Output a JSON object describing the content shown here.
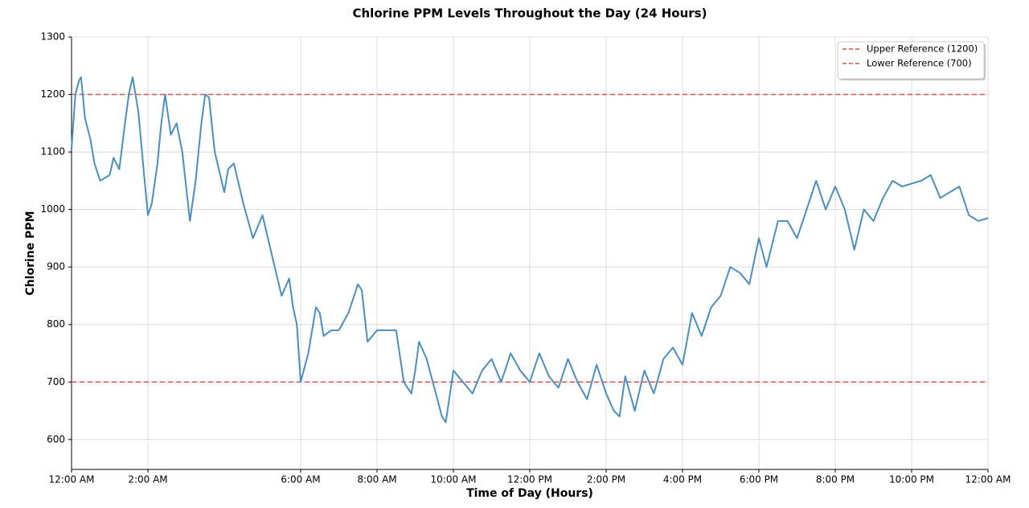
{
  "chart_data": {
    "type": "line",
    "title": "Chlorine PPM Levels Throughout the Day (24 Hours)",
    "x_label": "Time of Day (Hours)",
    "y_label": "Chlorine PPM",
    "x": [
      0,
      0.1,
      0.2,
      0.25,
      0.35,
      0.5,
      0.6,
      0.75,
      1,
      1.1,
      1.25,
      1.4,
      1.5,
      1.6,
      1.75,
      1.9,
      2,
      2.1,
      2.25,
      2.35,
      2.45,
      2.6,
      2.75,
      2.9,
      3,
      3.1,
      3.25,
      3.4,
      3.5,
      3.6,
      3.75,
      4,
      4.1,
      4.25,
      4.5,
      4.75,
      5,
      5.25,
      5.5,
      5.7,
      5.8,
      5.9,
      6,
      6.2,
      6.4,
      6.5,
      6.6,
      6.8,
      7,
      7.25,
      7.5,
      7.6,
      7.75,
      8,
      8.25,
      8.5,
      8.7,
      8.9,
      9,
      9.1,
      9.3,
      9.5,
      9.7,
      9.8,
      10,
      10.25,
      10.5,
      10.75,
      11,
      11.25,
      11.5,
      11.75,
      12,
      12.25,
      12.5,
      12.75,
      13,
      13.25,
      13.5,
      13.75,
      14,
      14.2,
      14.35,
      14.5,
      14.75,
      15,
      15.25,
      15.5,
      15.75,
      16,
      16.25,
      16.5,
      16.75,
      17,
      17.25,
      17.5,
      17.75,
      18,
      18.2,
      18.5,
      18.75,
      19,
      19.25,
      19.5,
      19.75,
      20,
      20.25,
      20.5,
      20.75,
      21,
      21.25,
      21.5,
      21.75,
      22,
      22.25,
      22.5,
      22.75,
      23,
      23.25,
      23.5,
      23.75,
      24
    ],
    "series": [
      {
        "color": "#4a8fc0",
        "values": [
          1106,
          1200,
          1225,
          1230,
          1160,
          1120,
          1080,
          1050,
          1060,
          1090,
          1070,
          1150,
          1200,
          1230,
          1170,
          1060,
          990,
          1010,
          1080,
          1150,
          1200,
          1130,
          1150,
          1100,
          1040,
          980,
          1050,
          1150,
          1200,
          1195,
          1100,
          1030,
          1070,
          1080,
          1010,
          950,
          990,
          920,
          850,
          880,
          830,
          800,
          700,
          750,
          830,
          820,
          780,
          790,
          790,
          820,
          870,
          860,
          770,
          790,
          790,
          790,
          700,
          680,
          720,
          770,
          740,
          690,
          640,
          630,
          720,
          700,
          680,
          720,
          740,
          700,
          750,
          720,
          700,
          750,
          710,
          690,
          740,
          700,
          670,
          730,
          680,
          650,
          640,
          710,
          650,
          720,
          680,
          740,
          760,
          730,
          820,
          780,
          830,
          850,
          900,
          890,
          870,
          950,
          900,
          980,
          980,
          950,
          1000,
          1050,
          1000,
          1040,
          1000,
          930,
          1000,
          980,
          1020,
          1050,
          1040,
          1045,
          1050,
          1060,
          1020,
          1030,
          1040,
          990,
          980,
          985
        ]
      }
    ],
    "reference_lines": [
      {
        "name": "Upper Reference (1200)",
        "value": 1200,
        "color": "#d9534f"
      },
      {
        "name": "Lower Reference (700)",
        "value": 700,
        "color": "#d9534f"
      }
    ],
    "xlim": [
      0,
      24
    ],
    "xticks": [
      {
        "value": 0,
        "label": "12:00 AM"
      },
      {
        "value": 2,
        "label": "2:00 AM"
      },
      {
        "value": 6,
        "label": "6:00 AM"
      },
      {
        "value": 8,
        "label": "8:00 AM"
      },
      {
        "value": 10,
        "label": "10:00 AM"
      },
      {
        "value": 12,
        "label": "12:00 PM"
      },
      {
        "value": 14,
        "label": "2:00 PM"
      },
      {
        "value": 16,
        "label": "4:00 PM"
      },
      {
        "value": 18,
        "label": "6:00 PM"
      },
      {
        "value": 20,
        "label": "8:00 PM"
      },
      {
        "value": 22,
        "label": "10:00 PM"
      },
      {
        "value": 24,
        "label": "12:00 AM"
      }
    ],
    "ylim": [
      548,
      1300
    ],
    "yticks": [
      600,
      700,
      800,
      900,
      1000,
      1100,
      1200,
      1300
    ],
    "grid": true,
    "legend_position": "upper-right"
  }
}
